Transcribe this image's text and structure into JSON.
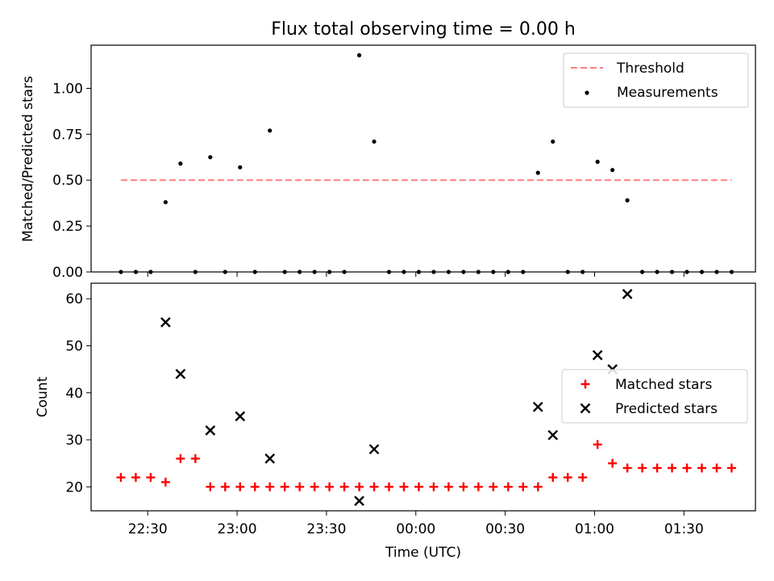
{
  "chart_data": [
    {
      "type": "scatter",
      "title": "Flux total observing time = 0.00 h",
      "xlabel": "",
      "ylabel": "Matched/Predicted stars",
      "ylim": [
        0,
        1.235
      ],
      "yticks": [
        "0.00",
        "0.25",
        "0.50",
        "0.75",
        "1.00"
      ],
      "ytick_values": [
        0,
        0.25,
        0.5,
        0.75,
        1.0
      ],
      "legend_position": "top-right",
      "threshold": {
        "name": "Threshold",
        "value": 0.5,
        "color": "#ff7f7f",
        "x_start": "22:21",
        "x_end": "01:46"
      },
      "measurements": {
        "name": "Measurements",
        "color": "#000000",
        "x": [
          "22:21",
          "22:26",
          "22:31",
          "22:36",
          "22:41",
          "22:46",
          "22:51",
          "22:56",
          "23:01",
          "23:06",
          "23:11",
          "23:16",
          "23:21",
          "23:26",
          "23:31",
          "23:36",
          "23:41",
          "23:46",
          "23:51",
          "23:56",
          "00:01",
          "00:06",
          "00:11",
          "00:16",
          "00:21",
          "00:26",
          "00:31",
          "00:36",
          "00:41",
          "00:46",
          "00:51",
          "00:56",
          "01:01",
          "01:06",
          "01:11",
          "01:16",
          "01:21",
          "01:26",
          "01:31",
          "01:36",
          "01:41",
          "01:46"
        ],
        "y": [
          0,
          0,
          0,
          0.38,
          0.59,
          0,
          0.625,
          0,
          0.57,
          0,
          0.77,
          0,
          0,
          0,
          0,
          0,
          1.18,
          0.71,
          0,
          0,
          0,
          0,
          0,
          0,
          0,
          0,
          0,
          0,
          0.54,
          0.71,
          0,
          0,
          0.6,
          0.555,
          0.39,
          0,
          0,
          0,
          0,
          0,
          0,
          0
        ]
      }
    },
    {
      "type": "scatter",
      "title": "",
      "xlabel": "Time (UTC)",
      "ylabel": "Count",
      "ylim": [
        14.9,
        63.3
      ],
      "yticks": [
        "20",
        "30",
        "40",
        "50",
        "60"
      ],
      "ytick_values": [
        20,
        30,
        40,
        50,
        60
      ],
      "xlim": [
        "22:11",
        "01:54"
      ],
      "xticks": [
        "22:30",
        "23:00",
        "23:30",
        "00:00",
        "00:30",
        "01:00",
        "01:30"
      ],
      "legend_position": "center-right",
      "series": [
        {
          "name": "Matched stars",
          "marker": "plus",
          "color": "#ff0000",
          "x": [
            "22:21",
            "22:26",
            "22:31",
            "22:36",
            "22:41",
            "22:46",
            "22:51",
            "22:56",
            "23:01",
            "23:06",
            "23:11",
            "23:16",
            "23:21",
            "23:26",
            "23:31",
            "23:36",
            "23:41",
            "23:46",
            "23:51",
            "23:56",
            "00:01",
            "00:06",
            "00:11",
            "00:16",
            "00:21",
            "00:26",
            "00:31",
            "00:36",
            "00:41",
            "00:46",
            "00:51",
            "00:56",
            "01:01",
            "01:06",
            "01:11",
            "01:16",
            "01:21",
            "01:26",
            "01:31",
            "01:36",
            "01:41",
            "01:46"
          ],
          "y": [
            22,
            22,
            22,
            21,
            26,
            26,
            20,
            20,
            20,
            20,
            20,
            20,
            20,
            20,
            20,
            20,
            20,
            20,
            20,
            20,
            20,
            20,
            20,
            20,
            20,
            20,
            20,
            20,
            20,
            22,
            22,
            22,
            29,
            25,
            24,
            24,
            24,
            24,
            24,
            24,
            24,
            24
          ]
        },
        {
          "name": "Predicted stars",
          "marker": "x",
          "color": "#000000",
          "x": [
            "22:36",
            "22:41",
            "22:51",
            "23:01",
            "23:11",
            "23:41",
            "23:46",
            "00:41",
            "00:46",
            "01:01",
            "01:06",
            "01:11"
          ],
          "y": [
            55,
            44,
            32,
            35,
            26,
            17,
            28,
            37,
            31,
            48,
            45,
            61
          ]
        }
      ]
    }
  ]
}
